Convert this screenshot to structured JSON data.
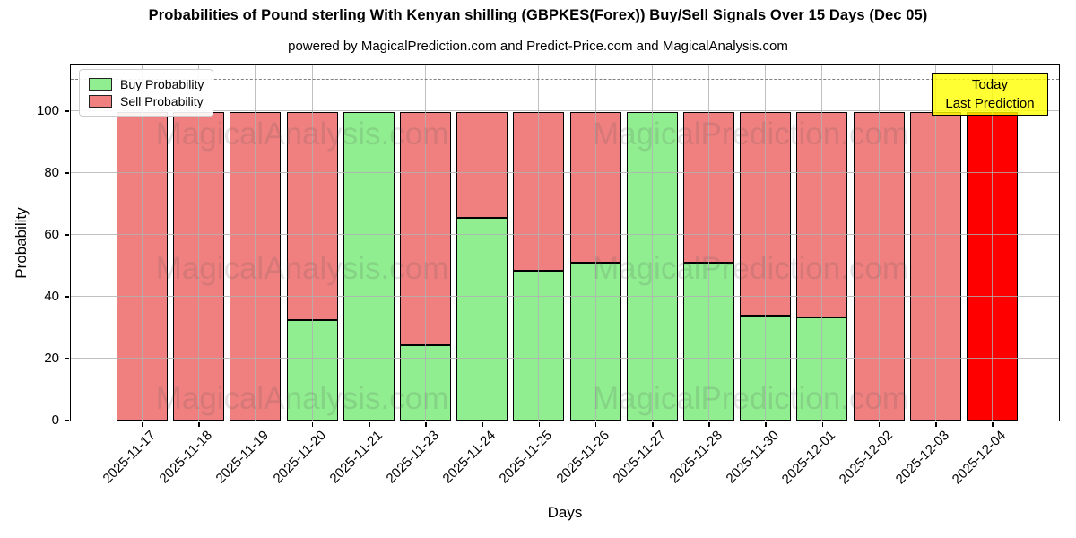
{
  "title": "Probabilities of Pound sterling With Kenyan shilling (GBPKES(Forex)) Buy/Sell Signals Over 15 Days (Dec 05)",
  "subtitle": "powered by MagicalPrediction.com and Predict-Price.com and MagicalAnalysis.com",
  "axes": {
    "xlabel": "Days",
    "ylabel": "Probability",
    "yticks": [
      0,
      20,
      40,
      60,
      80,
      100
    ],
    "ylim": [
      0,
      115
    ],
    "grid": true,
    "dashed_line_y": 110
  },
  "legend": {
    "position": "upper-left",
    "items": [
      {
        "label": "Buy Probability",
        "color": "#90ee90"
      },
      {
        "label": "Sell Probability",
        "color": "#f08080"
      }
    ]
  },
  "annotation": {
    "line1": "Today",
    "line2": "Last Prediction",
    "bg_color": "#ffff00",
    "border_color": "#000000"
  },
  "watermarks": [
    "MagicalAnalysis.com",
    "MagicalPrediction.com"
  ],
  "chart_data": {
    "type": "bar",
    "stacked": true,
    "categories": [
      "2025-11-17",
      "2025-11-18",
      "2025-11-19",
      "2025-11-20",
      "2025-11-21",
      "2025-11-23",
      "2025-11-24",
      "2025-11-25",
      "2025-11-26",
      "2025-11-27",
      "2025-11-28",
      "2025-11-30",
      "2025-12-01",
      "2025-12-02",
      "2025-12-03",
      "2025-12-04"
    ],
    "series": [
      {
        "name": "Buy Probability",
        "color": "#90ee90",
        "values": [
          0,
          0,
          0,
          32.5,
          100,
          24.5,
          65.5,
          48.5,
          51,
          100,
          51,
          34,
          33.5,
          0,
          0,
          0
        ]
      },
      {
        "name": "Sell Probability",
        "color": "#f08080",
        "values": [
          100,
          100,
          100,
          67.5,
          0,
          75.5,
          34.5,
          51.5,
          49,
          0,
          49,
          66,
          66.5,
          100,
          100,
          100
        ]
      }
    ],
    "highlight": {
      "index": 15,
      "series": "Sell Probability",
      "color": "#ff0000"
    },
    "bar_edge_color": "#000000",
    "grid_color": "#b0b0b0",
    "dashed_line_color": "#808080"
  }
}
